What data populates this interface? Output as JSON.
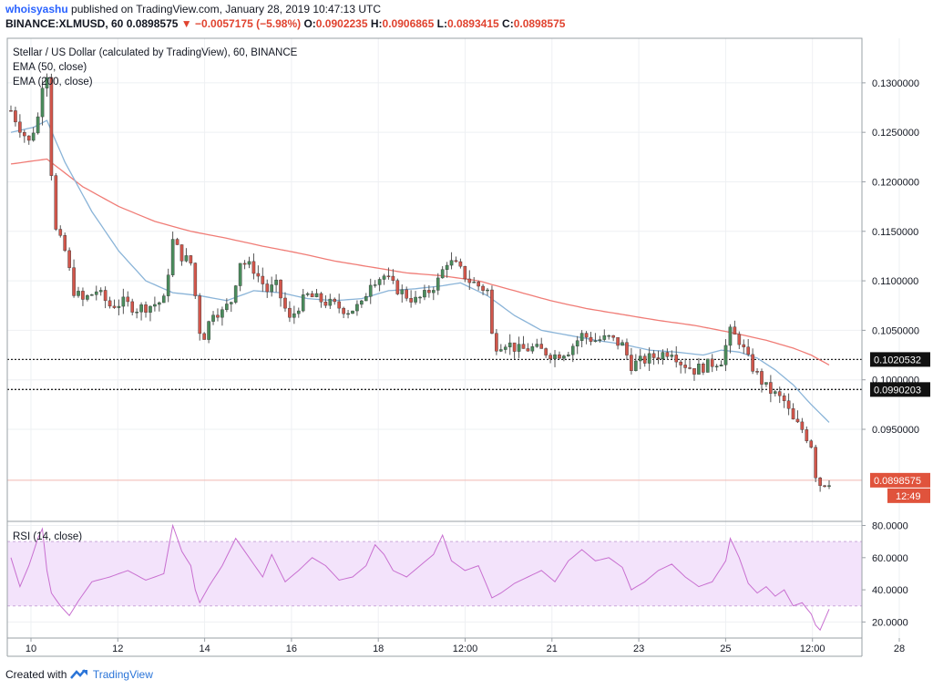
{
  "header": {
    "author": "whoisyashu",
    "published_text": "published on TradingView.com, January 28, 2019 10:47:13 UTC",
    "symbol_line": "BINANCE:XLMUSD, 60",
    "last": "0.0898575",
    "change_arrow": "▼",
    "change": "−0.0057175 (−5.98%)",
    "o_label": "O:",
    "o": "0.0902235",
    "h_label": "H:",
    "h": "0.0906865",
    "l_label": "L:",
    "l": "0.0893415",
    "c_label": "C:",
    "c": "0.0898575"
  },
  "legend": {
    "title": "Stellar / US Dollar (calculated by TradingView), 60, BINANCE",
    "ema50": "EMA (50, close)",
    "ema200": "EMA (200, close)",
    "rsi": "RSI (14, close)"
  },
  "colors": {
    "up": "#4a8c5c",
    "down": "#d2564b",
    "wick": "#555555",
    "ema50": "#8ab4d8",
    "ema200": "#f07c76",
    "rsi_line": "#c86fd0",
    "rsi_band": "#f3e3fb",
    "price_label": "#e0533c",
    "hline_label": "#111111"
  },
  "chart_data": [
    {
      "type": "candlestick",
      "title": "Stellar / US Dollar (calculated by TradingView), 60, BINANCE",
      "x_ticks": [
        "10",
        "12",
        "14",
        "16",
        "18",
        "12:00",
        "21",
        "23",
        "25",
        "12:00",
        "28"
      ],
      "y_ticks": [
        "0.1300000",
        "0.1250000",
        "0.1200000",
        "0.1150000",
        "0.1100000",
        "0.1050000",
        "0.1000000",
        "0.0950000"
      ],
      "ylim": [
        0.0857,
        0.1345
      ],
      "horizontal_lines": [
        {
          "value": 0.1020532,
          "label": "0.1020532"
        },
        {
          "value": 0.0990203,
          "label": "0.0990203"
        }
      ],
      "last_price_label": "0.0898575",
      "countdown": "12:49",
      "price_path": [
        [
          0,
          0.1272
        ],
        [
          2,
          0.1255
        ],
        [
          4,
          0.124
        ],
        [
          6,
          0.1265
        ],
        [
          7,
          0.13
        ],
        [
          8,
          0.131
        ],
        [
          9,
          0.121
        ],
        [
          10,
          0.115
        ],
        [
          12,
          0.113
        ],
        [
          14,
          0.109
        ],
        [
          16,
          0.108
        ],
        [
          19,
          0.109
        ],
        [
          22,
          0.1075
        ],
        [
          25,
          0.1078
        ],
        [
          28,
          0.1072
        ],
        [
          31,
          0.1075
        ],
        [
          34,
          0.108
        ],
        [
          36,
          0.114
        ],
        [
          38,
          0.1125
        ],
        [
          40,
          0.1118
        ],
        [
          41,
          0.1085
        ],
        [
          42,
          0.105
        ],
        [
          43,
          0.1045
        ],
        [
          45,
          0.107
        ],
        [
          47,
          0.1068
        ],
        [
          49,
          0.108
        ],
        [
          51,
          0.112
        ],
        [
          54,
          0.1112
        ],
        [
          57,
          0.109
        ],
        [
          59,
          0.1095
        ],
        [
          62,
          0.106
        ],
        [
          64,
          0.1075
        ],
        [
          66,
          0.1085
        ],
        [
          69,
          0.108
        ],
        [
          72,
          0.1075
        ],
        [
          75,
          0.107
        ],
        [
          78,
          0.1075
        ],
        [
          80,
          0.11
        ],
        [
          83,
          0.1105
        ],
        [
          85,
          0.1095
        ],
        [
          88,
          0.1085
        ],
        [
          90,
          0.108
        ],
        [
          92,
          0.1085
        ],
        [
          95,
          0.11
        ],
        [
          97,
          0.112
        ],
        [
          99,
          0.1115
        ],
        [
          102,
          0.11
        ],
        [
          104,
          0.1095
        ],
        [
          106,
          0.109
        ],
        [
          107,
          0.1045
        ],
        [
          108,
          0.1035
        ],
        [
          110,
          0.1038
        ],
        [
          113,
          0.103
        ],
        [
          116,
          0.1032
        ],
        [
          119,
          0.1028
        ],
        [
          121,
          0.1025
        ],
        [
          124,
          0.103
        ],
        [
          127,
          0.1045
        ],
        [
          130,
          0.104
        ],
        [
          133,
          0.1042
        ],
        [
          136,
          0.1035
        ],
        [
          138,
          0.1015
        ],
        [
          141,
          0.102
        ],
        [
          144,
          0.1025
        ],
        [
          147,
          0.103
        ],
        [
          149,
          0.1018
        ],
        [
          152,
          0.101
        ],
        [
          155,
          0.1015
        ],
        [
          158,
          0.102
        ],
        [
          160,
          0.1048
        ],
        [
          162,
          0.104
        ],
        [
          164,
          0.102
        ],
        [
          166,
          0.1005
        ],
        [
          168,
          0.0992
        ],
        [
          170,
          0.0985
        ],
        [
          172,
          0.0978
        ],
        [
          174,
          0.0958
        ],
        [
          176,
          0.095
        ],
        [
          178,
          0.0935
        ],
        [
          179,
          0.0905
        ],
        [
          180,
          0.0895
        ],
        [
          182,
          0.0898
        ]
      ],
      "ema50_path": [
        [
          0,
          0.125
        ],
        [
          5,
          0.1255
        ],
        [
          8,
          0.1262
        ],
        [
          12,
          0.122
        ],
        [
          18,
          0.117
        ],
        [
          24,
          0.113
        ],
        [
          30,
          0.11
        ],
        [
          36,
          0.1088
        ],
        [
          42,
          0.1085
        ],
        [
          48,
          0.108
        ],
        [
          54,
          0.109
        ],
        [
          60,
          0.1088
        ],
        [
          66,
          0.1082
        ],
        [
          72,
          0.108
        ],
        [
          78,
          0.1082
        ],
        [
          84,
          0.109
        ],
        [
          90,
          0.1092
        ],
        [
          96,
          0.1095
        ],
        [
          100,
          0.1098
        ],
        [
          106,
          0.1085
        ],
        [
          112,
          0.1065
        ],
        [
          118,
          0.105
        ],
        [
          124,
          0.1045
        ],
        [
          130,
          0.104
        ],
        [
          136,
          0.1036
        ],
        [
          142,
          0.103
        ],
        [
          148,
          0.1028
        ],
        [
          154,
          0.1025
        ],
        [
          158,
          0.103
        ],
        [
          162,
          0.1028
        ],
        [
          166,
          0.1022
        ],
        [
          170,
          0.101
        ],
        [
          174,
          0.0995
        ],
        [
          178,
          0.0975
        ],
        [
          182,
          0.0957
        ]
      ],
      "ema200_path": [
        [
          0,
          0.1218
        ],
        [
          8,
          0.1223
        ],
        [
          16,
          0.1195
        ],
        [
          24,
          0.1175
        ],
        [
          32,
          0.116
        ],
        [
          40,
          0.115
        ],
        [
          48,
          0.1143
        ],
        [
          56,
          0.1135
        ],
        [
          64,
          0.1128
        ],
        [
          72,
          0.112
        ],
        [
          80,
          0.1114
        ],
        [
          88,
          0.1108
        ],
        [
          96,
          0.1105
        ],
        [
          104,
          0.11
        ],
        [
          112,
          0.109
        ],
        [
          120,
          0.108
        ],
        [
          128,
          0.1072
        ],
        [
          136,
          0.1066
        ],
        [
          144,
          0.106
        ],
        [
          152,
          0.1055
        ],
        [
          160,
          0.1048
        ],
        [
          168,
          0.104
        ],
        [
          174,
          0.1032
        ],
        [
          178,
          0.1025
        ],
        [
          182,
          0.1015
        ]
      ]
    },
    {
      "type": "line",
      "title": "RSI (14, close)",
      "y_ticks": [
        "80.0000",
        "60.0000",
        "40.0000",
        "20.0000"
      ],
      "ylim": [
        10,
        82
      ],
      "band": [
        30,
        70
      ],
      "rsi_path": [
        [
          0,
          60
        ],
        [
          2,
          42
        ],
        [
          4,
          55
        ],
        [
          6,
          72
        ],
        [
          7,
          78
        ],
        [
          8,
          52
        ],
        [
          9,
          38
        ],
        [
          11,
          30
        ],
        [
          13,
          24
        ],
        [
          15,
          33
        ],
        [
          18,
          45
        ],
        [
          22,
          48
        ],
        [
          26,
          52
        ],
        [
          30,
          46
        ],
        [
          34,
          50
        ],
        [
          36,
          80
        ],
        [
          38,
          64
        ],
        [
          40,
          55
        ],
        [
          41,
          40
        ],
        [
          42,
          32
        ],
        [
          44,
          42
        ],
        [
          47,
          55
        ],
        [
          50,
          72
        ],
        [
          53,
          60
        ],
        [
          56,
          48
        ],
        [
          58,
          62
        ],
        [
          61,
          45
        ],
        [
          64,
          52
        ],
        [
          67,
          60
        ],
        [
          70,
          55
        ],
        [
          73,
          46
        ],
        [
          76,
          48
        ],
        [
          79,
          55
        ],
        [
          81,
          68
        ],
        [
          83,
          62
        ],
        [
          85,
          52
        ],
        [
          88,
          48
        ],
        [
          91,
          55
        ],
        [
          94,
          62
        ],
        [
          96,
          74
        ],
        [
          98,
          58
        ],
        [
          101,
          52
        ],
        [
          104,
          55
        ],
        [
          107,
          35
        ],
        [
          109,
          38
        ],
        [
          112,
          44
        ],
        [
          115,
          48
        ],
        [
          118,
          52
        ],
        [
          121,
          45
        ],
        [
          124,
          58
        ],
        [
          127,
          65
        ],
        [
          130,
          58
        ],
        [
          133,
          60
        ],
        [
          136,
          54
        ],
        [
          138,
          40
        ],
        [
          141,
          45
        ],
        [
          144,
          52
        ],
        [
          147,
          56
        ],
        [
          150,
          48
        ],
        [
          153,
          42
        ],
        [
          156,
          45
        ],
        [
          159,
          58
        ],
        [
          160,
          72
        ],
        [
          162,
          60
        ],
        [
          164,
          44
        ],
        [
          166,
          38
        ],
        [
          168,
          42
        ],
        [
          170,
          36
        ],
        [
          172,
          40
        ],
        [
          174,
          30
        ],
        [
          176,
          32
        ],
        [
          178,
          25
        ],
        [
          179,
          18
        ],
        [
          180,
          15
        ],
        [
          182,
          28
        ]
      ]
    }
  ],
  "footer": {
    "created_with": "Created with",
    "brand": "TradingView"
  }
}
